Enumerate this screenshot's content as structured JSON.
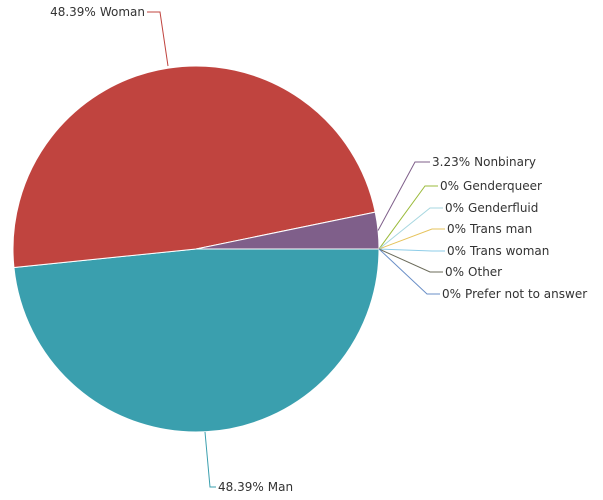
{
  "chart_data": {
    "type": "pie",
    "categories": [
      "Man",
      "Woman",
      "Nonbinary",
      "Genderqueer",
      "Genderfluid",
      "Trans man",
      "Trans woman",
      "Other",
      "Prefer not to answer"
    ],
    "values": [
      48.39,
      48.39,
      3.23,
      0,
      0,
      0,
      0,
      0,
      0
    ],
    "value_labels": [
      "48.39%",
      "48.39%",
      "3.23%",
      "0%",
      "0%",
      "0%",
      "0%",
      "0%",
      "0%"
    ],
    "colors": [
      "#3a9fae",
      "#c0443f",
      "#7f5f8a",
      "#9bbb3b",
      "#a7d7e0",
      "#e6c35c",
      "#8ecde8",
      "#6b6b5a",
      "#6a8fc7"
    ]
  }
}
